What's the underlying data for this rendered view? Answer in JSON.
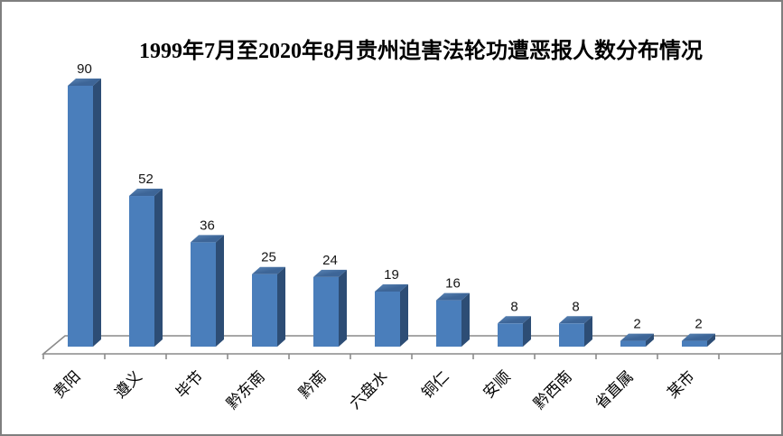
{
  "window": {
    "background_color": "#ffffff",
    "frame_color": "#7f7f7f"
  },
  "chart_data": {
    "type": "bar",
    "style": "3d-column",
    "title": "1999年7月至2020年8月贵州迫害法轮功遭恶报人数分布情况",
    "categories": [
      "贵阳",
      "遵义",
      "毕节",
      "黔东南",
      "黔南",
      "六盘水",
      "铜仁",
      "安顺",
      "黔西南",
      "省直属",
      "某市"
    ],
    "values": [
      90,
      52,
      36,
      25,
      24,
      19,
      16,
      8,
      8,
      2,
      2
    ],
    "data_labels_shown": true,
    "xlabel": "",
    "ylabel": "",
    "ylim": [
      0,
      90
    ],
    "grid": false,
    "legend_position": "none",
    "colors": {
      "bar_front": "#4a7ebb",
      "bar_top": "#3d6597",
      "bar_top_light": "#5c87b8",
      "bar_side": "#2d4d75",
      "axis_line": "#8a8a8a",
      "floor_fill": "#ffffff"
    }
  }
}
